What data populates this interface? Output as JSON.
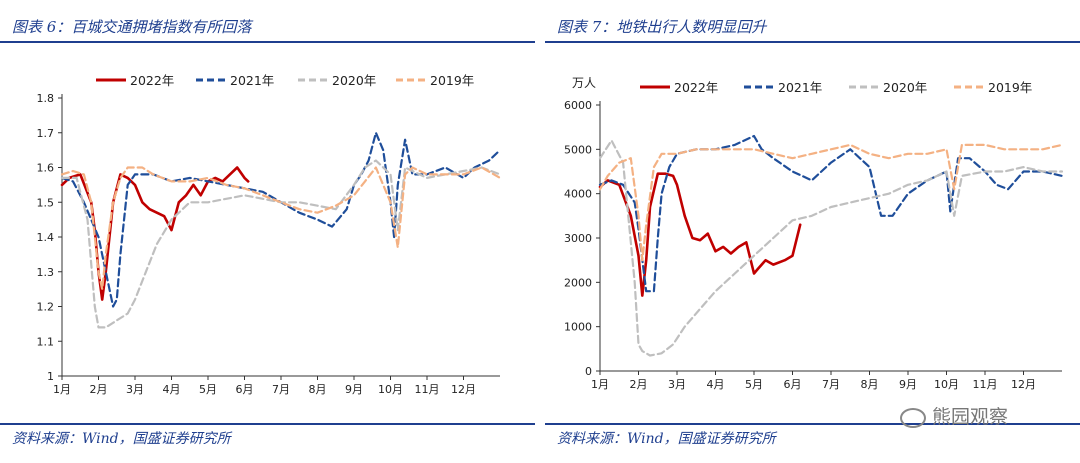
{
  "left_panel": {
    "title": "图表 6：百城交通拥堵指数有所回落",
    "source": "资料来源：Wind，国盛证券研究所"
  },
  "right_panel": {
    "title": "图表 7：地铁出行人数明显回升",
    "source": "资料来源：Wind，国盛证券研究所"
  },
  "watermark": {
    "text": "熊园观察",
    "icon": "wechat-icon"
  },
  "colors": {
    "s2022": "#c00000",
    "s2021": "#1f4e9a",
    "s2020": "#bfbfbf",
    "s2019": "#f4b183",
    "rule": "#1f3f8f"
  },
  "chart_data": [
    {
      "type": "line",
      "title": "百城交通拥堵指数有所回落",
      "xlabel": "",
      "ylabel": "",
      "xlim": [
        1,
        13
      ],
      "ylim": [
        1.0,
        1.8
      ],
      "yticks": [
        "1.8",
        "1.7",
        "1.6",
        "1.5",
        "1.4",
        "1.3",
        "1.2",
        "1.1",
        "1"
      ],
      "ytick_values": [
        1.8,
        1.7,
        1.6,
        1.5,
        1.4,
        1.3,
        1.2,
        1.1,
        1.0
      ],
      "xticks": [
        "1月",
        "2月",
        "3月",
        "4月",
        "5月",
        "6月",
        "7月",
        "8月",
        "9月",
        "10月",
        "11月",
        "12月"
      ],
      "legend": [
        "2022年",
        "2021年",
        "2020年",
        "2019年"
      ],
      "series": [
        {
          "name": "2022年",
          "style": "solid",
          "x": [
            1.0,
            1.2,
            1.5,
            1.8,
            1.9,
            2.0,
            2.1,
            2.2,
            2.4,
            2.6,
            2.8,
            3.0,
            3.2,
            3.4,
            3.6,
            3.8,
            4.0,
            4.2,
            4.4,
            4.6,
            4.8,
            5.0,
            5.2,
            5.4,
            5.6,
            5.8,
            6.0,
            6.1
          ],
          "y": [
            1.55,
            1.57,
            1.58,
            1.5,
            1.42,
            1.3,
            1.22,
            1.3,
            1.5,
            1.58,
            1.57,
            1.55,
            1.5,
            1.48,
            1.47,
            1.46,
            1.42,
            1.5,
            1.52,
            1.55,
            1.52,
            1.56,
            1.57,
            1.56,
            1.58,
            1.6,
            1.57,
            1.56
          ]
        },
        {
          "name": "2021年",
          "style": "dashed",
          "x": [
            1.0,
            1.3,
            1.6,
            2.0,
            2.2,
            2.4,
            2.5,
            2.6,
            2.8,
            3.0,
            3.5,
            4.0,
            4.5,
            5.0,
            5.5,
            6.0,
            6.5,
            7.0,
            7.5,
            8.0,
            8.4,
            8.8,
            9.0,
            9.2,
            9.4,
            9.6,
            9.8,
            10.0,
            10.1,
            10.2,
            10.4,
            10.6,
            11.0,
            11.5,
            12.0,
            12.3,
            12.7,
            13.0
          ],
          "y": [
            1.57,
            1.56,
            1.5,
            1.4,
            1.3,
            1.2,
            1.22,
            1.35,
            1.55,
            1.58,
            1.58,
            1.56,
            1.57,
            1.56,
            1.55,
            1.54,
            1.53,
            1.5,
            1.47,
            1.45,
            1.43,
            1.48,
            1.55,
            1.58,
            1.62,
            1.7,
            1.65,
            1.5,
            1.4,
            1.55,
            1.68,
            1.58,
            1.58,
            1.6,
            1.57,
            1.6,
            1.62,
            1.65
          ]
        },
        {
          "name": "2020年",
          "style": "dashed",
          "x": [
            1.0,
            1.4,
            1.7,
            1.9,
            2.0,
            2.2,
            2.5,
            2.8,
            3.0,
            3.3,
            3.6,
            4.0,
            4.5,
            5.0,
            5.5,
            6.0,
            6.5,
            7.0,
            7.5,
            8.0,
            8.5,
            9.0,
            9.3,
            9.6,
            10.0,
            10.2,
            10.4,
            11.0,
            11.5,
            12.0,
            12.5,
            13.0
          ],
          "y": [
            1.57,
            1.57,
            1.45,
            1.2,
            1.14,
            1.14,
            1.16,
            1.18,
            1.22,
            1.3,
            1.38,
            1.45,
            1.5,
            1.5,
            1.51,
            1.52,
            1.51,
            1.5,
            1.5,
            1.49,
            1.48,
            1.55,
            1.6,
            1.62,
            1.58,
            1.42,
            1.6,
            1.57,
            1.58,
            1.59,
            1.6,
            1.58
          ]
        },
        {
          "name": "2019年",
          "style": "dashed",
          "x": [
            1.0,
            1.3,
            1.6,
            1.8,
            1.9,
            2.0,
            2.1,
            2.2,
            2.4,
            2.6,
            2.8,
            3.0,
            3.2,
            3.5,
            4.0,
            4.5,
            5.0,
            5.5,
            6.0,
            6.5,
            7.0,
            7.5,
            8.0,
            8.5,
            9.0,
            9.3,
            9.6,
            9.8,
            10.0,
            10.2,
            10.4,
            10.6,
            11.0,
            11.5,
            12.0,
            12.5,
            13.0
          ],
          "y": [
            1.58,
            1.59,
            1.58,
            1.5,
            1.4,
            1.3,
            1.25,
            1.35,
            1.5,
            1.57,
            1.6,
            1.6,
            1.6,
            1.58,
            1.56,
            1.56,
            1.57,
            1.55,
            1.54,
            1.52,
            1.5,
            1.48,
            1.47,
            1.49,
            1.52,
            1.56,
            1.6,
            1.55,
            1.5,
            1.37,
            1.58,
            1.6,
            1.58,
            1.58,
            1.58,
            1.6,
            1.57
          ]
        }
      ]
    },
    {
      "type": "line",
      "title": "地铁出行人数明显回升",
      "xlabel": "",
      "ylabel": "万人",
      "xlim": [
        1,
        13
      ],
      "ylim": [
        0,
        6000
      ],
      "yticks": [
        "6000",
        "5000",
        "4000",
        "3000",
        "2000",
        "1000",
        "0"
      ],
      "ytick_values": [
        6000,
        5000,
        4000,
        3000,
        2000,
        1000,
        0
      ],
      "xticks": [
        "1月",
        "2月",
        "3月",
        "4月",
        "5月",
        "6月",
        "7月",
        "8月",
        "9月",
        "10月",
        "11月",
        "12月"
      ],
      "legend": [
        "2022年",
        "2021年",
        "2020年",
        "2019年"
      ],
      "series": [
        {
          "name": "2022年",
          "style": "solid",
          "x": [
            1.0,
            1.2,
            1.5,
            1.8,
            2.0,
            2.1,
            2.2,
            2.3,
            2.5,
            2.7,
            2.9,
            3.0,
            3.2,
            3.4,
            3.6,
            3.8,
            4.0,
            4.2,
            4.4,
            4.6,
            4.8,
            5.0,
            5.1,
            5.3,
            5.5,
            5.8,
            6.0,
            6.2
          ],
          "y": [
            4150,
            4300,
            4200,
            3500,
            2600,
            1700,
            2500,
            3700,
            4450,
            4450,
            4400,
            4200,
            3500,
            3000,
            2950,
            3100,
            2700,
            2800,
            2650,
            2800,
            2900,
            2200,
            2300,
            2500,
            2400,
            2500,
            2600,
            3300
          ]
        },
        {
          "name": "2021年",
          "style": "dashed",
          "x": [
            1.0,
            1.3,
            1.6,
            1.9,
            2.0,
            2.2,
            2.4,
            2.5,
            2.6,
            2.8,
            3.0,
            3.5,
            4.0,
            4.5,
            5.0,
            5.2,
            5.5,
            6.0,
            6.5,
            7.0,
            7.5,
            8.0,
            8.3,
            8.6,
            9.0,
            9.5,
            10.0,
            10.1,
            10.3,
            10.6,
            11.0,
            11.3,
            11.6,
            12.0,
            12.5,
            13.0
          ],
          "y": [
            4200,
            4300,
            4200,
            3800,
            3200,
            1800,
            1800,
            3000,
            4000,
            4600,
            4900,
            5000,
            5000,
            5100,
            5300,
            5000,
            4800,
            4500,
            4300,
            4700,
            5000,
            4600,
            3500,
            3500,
            4000,
            4300,
            4500,
            3600,
            4800,
            4800,
            4500,
            4200,
            4100,
            4500,
            4500,
            4400
          ]
        },
        {
          "name": "2020年",
          "style": "dashed",
          "x": [
            1.0,
            1.3,
            1.6,
            1.9,
            2.0,
            2.1,
            2.3,
            2.6,
            2.9,
            3.2,
            3.6,
            4.0,
            4.5,
            5.0,
            5.5,
            6.0,
            6.5,
            7.0,
            7.5,
            8.0,
            8.5,
            9.0,
            9.5,
            10.0,
            10.2,
            10.4,
            11.0,
            11.5,
            12.0,
            12.5,
            13.0
          ],
          "y": [
            4800,
            5200,
            4700,
            2000,
            600,
            450,
            350,
            400,
            600,
            1000,
            1400,
            1800,
            2200,
            2600,
            3000,
            3400,
            3500,
            3700,
            3800,
            3900,
            4000,
            4200,
            4300,
            4500,
            3500,
            4400,
            4500,
            4500,
            4600,
            4500,
            4500
          ]
        },
        {
          "name": "2019年",
          "style": "dashed",
          "x": [
            1.0,
            1.2,
            1.5,
            1.8,
            2.0,
            2.1,
            2.2,
            2.4,
            2.6,
            2.8,
            3.0,
            3.5,
            4.0,
            4.5,
            5.0,
            5.5,
            6.0,
            6.5,
            7.0,
            7.5,
            8.0,
            8.5,
            9.0,
            9.5,
            10.0,
            10.2,
            10.4,
            11.0,
            11.5,
            12.0,
            12.5,
            13.0
          ],
          "y": [
            4100,
            4400,
            4700,
            4800,
            3500,
            2500,
            3300,
            4600,
            4900,
            4900,
            4900,
            5000,
            5000,
            5000,
            5000,
            4900,
            4800,
            4900,
            5000,
            5100,
            4900,
            4800,
            4900,
            4900,
            5000,
            4100,
            5100,
            5100,
            5000,
            5000,
            5000,
            5100
          ]
        }
      ]
    }
  ]
}
